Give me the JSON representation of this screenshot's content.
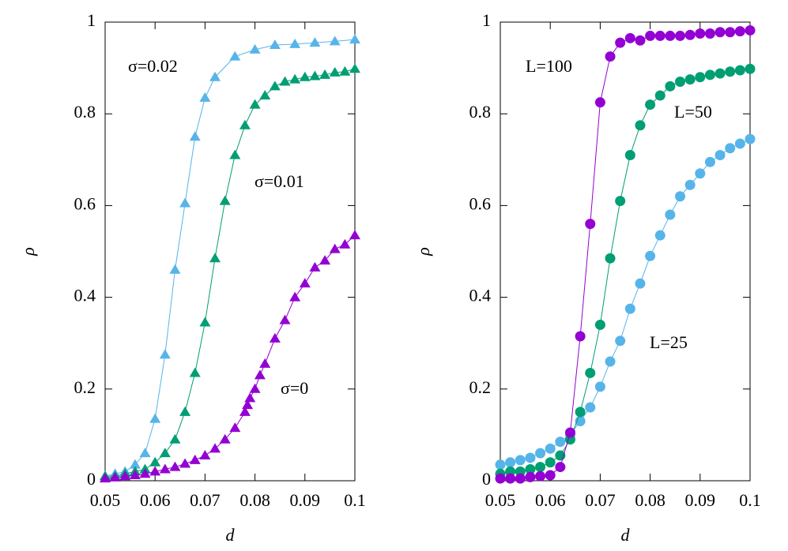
{
  "chart_data": [
    {
      "type": "line",
      "marker": "triangle",
      "x_label": "d",
      "y_label": "ρ",
      "xlim": [
        0.05,
        0.1
      ],
      "ylim": [
        0,
        1
      ],
      "xticks": [
        0.05,
        0.06,
        0.07,
        0.08,
        0.09,
        0.1
      ],
      "yticks": [
        0,
        0.2,
        0.4,
        0.6,
        0.8,
        1
      ],
      "annotations": [
        "σ=0.02",
        "σ=0.01",
        "σ=0"
      ],
      "series": [
        {
          "name": "σ=0.02",
          "color": "#56b4e9",
          "x": [
            0.05,
            0.052,
            0.054,
            0.056,
            0.058,
            0.06,
            0.062,
            0.064,
            0.066,
            0.068,
            0.07,
            0.072,
            0.076,
            0.08,
            0.084,
            0.088,
            0.092,
            0.096,
            0.1
          ],
          "values": [
            0.01,
            0.015,
            0.02,
            0.035,
            0.06,
            0.135,
            0.275,
            0.46,
            0.605,
            0.75,
            0.835,
            0.88,
            0.925,
            0.94,
            0.95,
            0.952,
            0.955,
            0.958,
            0.962
          ]
        },
        {
          "name": "σ=0.01",
          "color": "#009e73",
          "x": [
            0.05,
            0.052,
            0.054,
            0.056,
            0.058,
            0.06,
            0.062,
            0.064,
            0.066,
            0.068,
            0.07,
            0.072,
            0.074,
            0.076,
            0.078,
            0.08,
            0.082,
            0.084,
            0.086,
            0.088,
            0.09,
            0.092,
            0.094,
            0.096,
            0.098,
            0.1
          ],
          "values": [
            0.01,
            0.01,
            0.015,
            0.02,
            0.025,
            0.04,
            0.06,
            0.09,
            0.15,
            0.235,
            0.345,
            0.485,
            0.61,
            0.71,
            0.775,
            0.82,
            0.84,
            0.86,
            0.87,
            0.875,
            0.88,
            0.882,
            0.885,
            0.89,
            0.892,
            0.898
          ]
        },
        {
          "name": "σ=0",
          "color": "#9400d3",
          "x": [
            0.05,
            0.052,
            0.054,
            0.056,
            0.058,
            0.06,
            0.062,
            0.064,
            0.066,
            0.068,
            0.07,
            0.072,
            0.074,
            0.076,
            0.078,
            0.0785,
            0.079,
            0.08,
            0.081,
            0.082,
            0.084,
            0.086,
            0.088,
            0.09,
            0.092,
            0.094,
            0.096,
            0.098,
            0.1
          ],
          "values": [
            0.005,
            0.007,
            0.01,
            0.012,
            0.015,
            0.02,
            0.025,
            0.03,
            0.037,
            0.045,
            0.055,
            0.07,
            0.09,
            0.115,
            0.15,
            0.165,
            0.18,
            0.2,
            0.23,
            0.255,
            0.31,
            0.35,
            0.4,
            0.43,
            0.465,
            0.48,
            0.505,
            0.515,
            0.535
          ]
        }
      ]
    },
    {
      "type": "line",
      "marker": "circle",
      "x_label": "d",
      "y_label": "ρ",
      "xlim": [
        0.05,
        0.1
      ],
      "ylim": [
        0,
        1
      ],
      "xticks": [
        0.05,
        0.06,
        0.07,
        0.08,
        0.09,
        0.1
      ],
      "yticks": [
        0,
        0.2,
        0.4,
        0.6,
        0.8,
        1
      ],
      "annotations": [
        "L=100",
        "L=50",
        "L=25"
      ],
      "series": [
        {
          "name": "L=25",
          "color": "#56b4e9",
          "x": [
            0.05,
            0.052,
            0.054,
            0.056,
            0.058,
            0.06,
            0.062,
            0.064,
            0.066,
            0.068,
            0.07,
            0.072,
            0.074,
            0.076,
            0.078,
            0.08,
            0.082,
            0.084,
            0.086,
            0.088,
            0.09,
            0.092,
            0.094,
            0.096,
            0.098,
            0.1
          ],
          "values": [
            0.035,
            0.04,
            0.045,
            0.05,
            0.06,
            0.07,
            0.085,
            0.1,
            0.13,
            0.16,
            0.205,
            0.26,
            0.305,
            0.375,
            0.43,
            0.49,
            0.535,
            0.58,
            0.62,
            0.645,
            0.67,
            0.695,
            0.71,
            0.725,
            0.735,
            0.745
          ]
        },
        {
          "name": "L=50",
          "color": "#009e73",
          "x": [
            0.05,
            0.052,
            0.054,
            0.056,
            0.058,
            0.06,
            0.062,
            0.064,
            0.066,
            0.068,
            0.07,
            0.072,
            0.074,
            0.076,
            0.078,
            0.08,
            0.082,
            0.084,
            0.086,
            0.088,
            0.09,
            0.092,
            0.094,
            0.096,
            0.098,
            0.1
          ],
          "values": [
            0.015,
            0.02,
            0.02,
            0.025,
            0.03,
            0.04,
            0.055,
            0.09,
            0.15,
            0.235,
            0.34,
            0.485,
            0.61,
            0.71,
            0.775,
            0.82,
            0.84,
            0.86,
            0.87,
            0.875,
            0.88,
            0.885,
            0.888,
            0.892,
            0.895,
            0.898
          ]
        },
        {
          "name": "L=100",
          "color": "#9400d3",
          "x": [
            0.05,
            0.052,
            0.054,
            0.056,
            0.058,
            0.06,
            0.062,
            0.064,
            0.066,
            0.068,
            0.07,
            0.072,
            0.074,
            0.076,
            0.078,
            0.08,
            0.082,
            0.084,
            0.086,
            0.088,
            0.09,
            0.092,
            0.094,
            0.096,
            0.098,
            0.1
          ],
          "values": [
            0.005,
            0.005,
            0.005,
            0.008,
            0.01,
            0.012,
            0.03,
            0.105,
            0.315,
            0.56,
            0.825,
            0.925,
            0.955,
            0.965,
            0.96,
            0.97,
            0.97,
            0.97,
            0.97,
            0.972,
            0.975,
            0.975,
            0.978,
            0.978,
            0.98,
            0.982
          ]
        }
      ]
    }
  ]
}
